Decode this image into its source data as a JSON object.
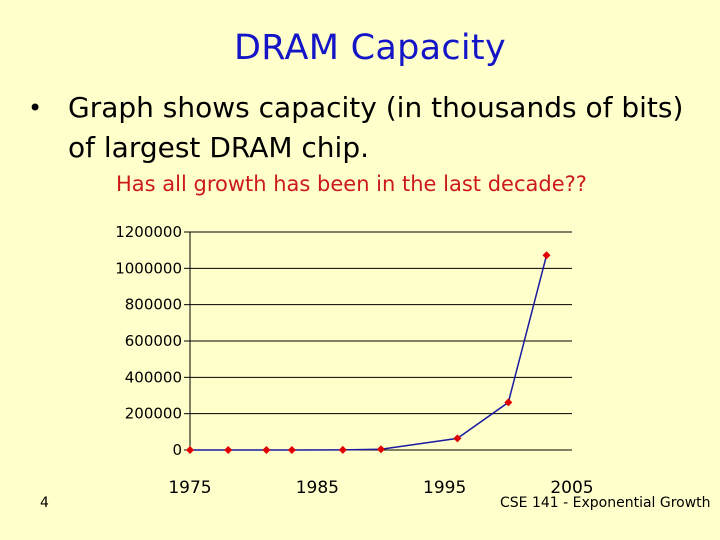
{
  "slide": {
    "title": "DRAM Capacity",
    "bullet": "Graph shows capacity (in thousands of bits) of largest DRAM chip.",
    "callout": "Has all growth has been in the last decade??",
    "slide_number": "4",
    "footer": "CSE 141 - Exponential Growth"
  },
  "colors": {
    "background": "#ffffcc",
    "title": "#1515c8",
    "callout": "#cc1a1a",
    "series_line": "#1a1aa0",
    "series_marker": "#e00000",
    "gridline": "#000000"
  },
  "chart_data": {
    "type": "line",
    "title": "",
    "xlabel": "",
    "ylabel": "",
    "xlim": [
      1975,
      2005
    ],
    "ylim": [
      0,
      1200000
    ],
    "x_ticks": [
      1975,
      1985,
      1995,
      2005
    ],
    "y_ticks": [
      0,
      200000,
      400000,
      600000,
      800000,
      1000000,
      1200000
    ],
    "grid": "horizontal",
    "legend": "none",
    "series": [
      {
        "x": [
          1975,
          1978,
          1981,
          1983,
          1987,
          1990,
          1996,
          2000,
          2003
        ],
        "y": [
          4,
          16,
          64,
          256,
          1024,
          4096,
          64000,
          262144,
          1072000
        ]
      }
    ]
  }
}
